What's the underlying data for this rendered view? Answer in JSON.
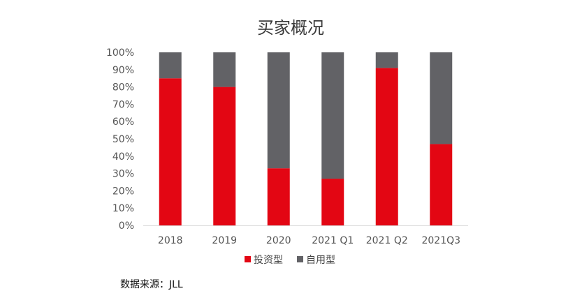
{
  "source_note": "数据来源：JLL",
  "colors": {
    "investment": "#e30613",
    "owner": "#626266",
    "axis": "#d9d9d9",
    "text": "#555555"
  },
  "chart_data": {
    "type": "bar",
    "stacked": true,
    "title": "买家概况",
    "xlabel": "",
    "ylabel": "",
    "ylim": [
      0,
      100
    ],
    "y_ticks": [
      "0%",
      "10%",
      "20%",
      "30%",
      "40%",
      "50%",
      "60%",
      "70%",
      "80%",
      "90%",
      "100%"
    ],
    "categories": [
      "2018",
      "2019",
      "2020",
      "2021 Q1",
      "2021 Q2",
      "2021Q3"
    ],
    "series": [
      {
        "name": "投资型",
        "color": "#e30613",
        "values": [
          85,
          80,
          33,
          27,
          91,
          47
        ]
      },
      {
        "name": "自用型",
        "color": "#626266",
        "values": [
          15,
          20,
          67,
          73,
          9,
          53
        ]
      }
    ],
    "legend_position": "bottom",
    "grid": false
  }
}
